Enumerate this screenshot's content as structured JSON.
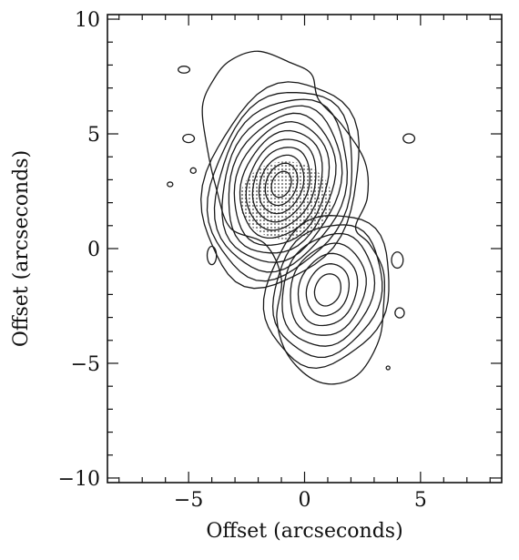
{
  "chart_data": {
    "type": "contour",
    "xlabel": "Offset (arcseconds)",
    "ylabel": "Offset (arcseconds)",
    "xlim": [
      -8.5,
      8.5
    ],
    "ylim": [
      -10.2,
      10.2
    ],
    "xticks": [
      -5,
      0,
      5
    ],
    "yticks": [
      -10,
      -5,
      0,
      5,
      10
    ],
    "xtick_labels": [
      "−5",
      "0",
      "5"
    ],
    "ytick_labels": [
      "−10",
      "−5",
      "0",
      "5",
      "10"
    ],
    "minor_tick_step": 1,
    "sources": [
      {
        "name": "",
        "x": -1.0,
        "y": 2.8,
        "rx": 3.2,
        "ry": 4.6,
        "angle": 20,
        "levels": 12
      },
      {
        "name": "",
        "x": 1.0,
        "y": -1.8,
        "rx": 2.6,
        "ry": 3.4,
        "angle": 20,
        "levels": 7
      }
    ],
    "outer_contour": [
      [
        -3.2,
        8.2
      ],
      [
        -2.0,
        8.6
      ],
      [
        -0.6,
        8.1
      ],
      [
        0.3,
        7.6
      ],
      [
        0.6,
        6.5
      ],
      [
        1.6,
        5.4
      ],
      [
        2.6,
        3.8
      ],
      [
        2.7,
        2.2
      ],
      [
        2.2,
        0.9
      ],
      [
        2.8,
        0.2
      ],
      [
        3.4,
        -1.0
      ],
      [
        3.4,
        -2.6
      ],
      [
        3.2,
        -4.0
      ],
      [
        2.4,
        -5.4
      ],
      [
        1.3,
        -5.9
      ],
      [
        0.2,
        -5.6
      ],
      [
        -0.8,
        -4.5
      ],
      [
        -1.2,
        -3.0
      ],
      [
        -1.0,
        -1.3
      ],
      [
        -1.7,
        0.2
      ],
      [
        -3.2,
        0.9
      ],
      [
        -3.8,
        2.6
      ],
      [
        -4.2,
        4.4
      ],
      [
        -4.4,
        6.2
      ],
      [
        -3.9,
        7.4
      ]
    ],
    "stipple_region": {
      "x0": -2.8,
      "x1": 1.2,
      "y0": 0.4,
      "y1": 3.8
    },
    "islands": [
      {
        "x": -5.2,
        "y": 7.8,
        "rx": 0.25,
        "ry": 0.15
      },
      {
        "x": -5.0,
        "y": 4.8,
        "rx": 0.25,
        "ry": 0.18
      },
      {
        "x": -4.8,
        "y": 3.4,
        "rx": 0.12,
        "ry": 0.12
      },
      {
        "x": -5.8,
        "y": 2.8,
        "rx": 0.12,
        "ry": 0.1
      },
      {
        "x": 4.5,
        "y": 4.8,
        "rx": 0.25,
        "ry": 0.2
      },
      {
        "x": 4.0,
        "y": -0.5,
        "rx": 0.25,
        "ry": 0.35
      },
      {
        "x": 4.1,
        "y": -2.8,
        "rx": 0.2,
        "ry": 0.22
      },
      {
        "x": -4.0,
        "y": -0.3,
        "rx": 0.2,
        "ry": 0.4
      },
      {
        "x": 3.6,
        "y": -5.2,
        "rx": 0.08,
        "ry": 0.08
      }
    ]
  }
}
